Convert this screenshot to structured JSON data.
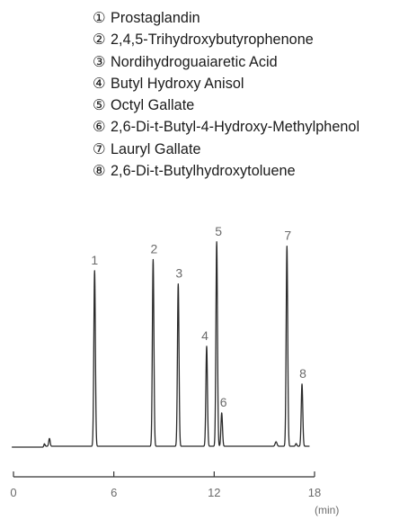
{
  "legend": [
    {
      "marker": "①",
      "label": "Prostaglandin"
    },
    {
      "marker": "②",
      "label": "2,4,5-Trihydroxybutyrophenone"
    },
    {
      "marker": "③",
      "label": "Nordihydroguaiaretic Acid"
    },
    {
      "marker": "④",
      "label": "Butyl Hydroxy Anisol"
    },
    {
      "marker": "⑤",
      "label": "Octyl Gallate"
    },
    {
      "marker": "⑥",
      "label": "2,6-Di-t-Butyl-4-Hydroxy-Methylphenol"
    },
    {
      "marker": "⑦",
      "label": "Lauryl Gallate"
    },
    {
      "marker": "⑧",
      "label": "2,6-Di-t-Butylhydroxytoluene"
    }
  ],
  "chart_data": {
    "type": "line",
    "title": "",
    "xlabel": "(min)",
    "ylabel": "",
    "xlim": [
      0,
      18
    ],
    "xticks": [
      0,
      6,
      12,
      18
    ],
    "ylim": [
      0,
      1
    ],
    "grid": false,
    "colors": {
      "trace": "#2b2b2b",
      "axis": "#333333",
      "labels": "#6a6a6a"
    },
    "peaks": [
      {
        "label": "1",
        "rt": 4.85,
        "height": 0.79
      },
      {
        "label": "2",
        "rt": 8.35,
        "height": 0.84
      },
      {
        "label": "3",
        "rt": 9.85,
        "height": 0.73
      },
      {
        "label": "4",
        "rt": 11.55,
        "height": 0.45
      },
      {
        "label": "5",
        "rt": 12.15,
        "height": 0.92
      },
      {
        "label": "6",
        "rt": 12.45,
        "height": 0.15
      },
      {
        "label": "7",
        "rt": 16.35,
        "height": 0.9
      },
      {
        "label": "8",
        "rt": 17.25,
        "height": 0.28
      }
    ]
  }
}
